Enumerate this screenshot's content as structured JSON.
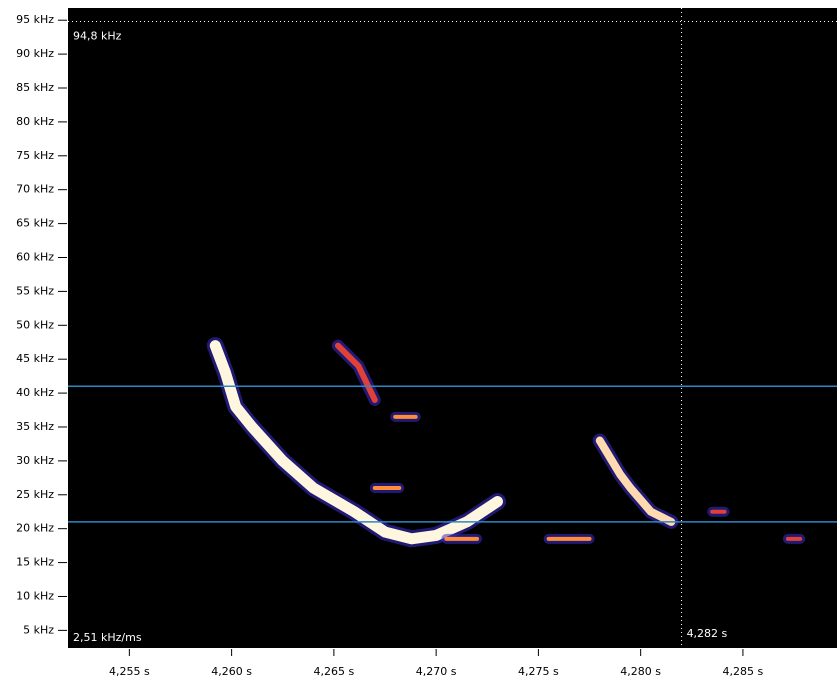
{
  "chart_data": {
    "type": "spectrogram",
    "xlim": [
      4.252,
      4.2896
    ],
    "ylim": [
      2.4,
      96.8
    ],
    "xticks": [
      {
        "value": 4.255,
        "label": "4,255 s"
      },
      {
        "value": 4.26,
        "label": "4,260 s"
      },
      {
        "value": 4.265,
        "label": "4,265 s"
      },
      {
        "value": 4.27,
        "label": "4,270 s"
      },
      {
        "value": 4.275,
        "label": "4,275 s"
      },
      {
        "value": 4.28,
        "label": "4,280 s"
      },
      {
        "value": 4.285,
        "label": "4,285 s"
      }
    ],
    "yticks": [
      {
        "value": 5,
        "label": "5 kHz"
      },
      {
        "value": 10,
        "label": "10 kHz"
      },
      {
        "value": 15,
        "label": "15 kHz"
      },
      {
        "value": 20,
        "label": "20 kHz"
      },
      {
        "value": 25,
        "label": "25 kHz"
      },
      {
        "value": 30,
        "label": "30 kHz"
      },
      {
        "value": 35,
        "label": "35 kHz"
      },
      {
        "value": 40,
        "label": "40 kHz"
      },
      {
        "value": 45,
        "label": "45 kHz"
      },
      {
        "value": 50,
        "label": "50 kHz"
      },
      {
        "value": 55,
        "label": "55 kHz"
      },
      {
        "value": 60,
        "label": "60 kHz"
      },
      {
        "value": 65,
        "label": "65 kHz"
      },
      {
        "value": 70,
        "label": "70 kHz"
      },
      {
        "value": 75,
        "label": "75 kHz"
      },
      {
        "value": 80,
        "label": "80 kHz"
      },
      {
        "value": 85,
        "label": "85 kHz"
      },
      {
        "value": 90,
        "label": "90 kHz"
      },
      {
        "value": 95,
        "label": "95 kHz"
      }
    ],
    "hlines": [
      41,
      21
    ],
    "hline_color": "#2f86c4",
    "cursor": {
      "x": 4.282,
      "y": 94.8,
      "x_label": "4,282 s",
      "y_label": "94,8 kHz"
    },
    "annotation": "2,51 kHz/ms",
    "series": [
      {
        "color": "#fff6e0",
        "width": 11,
        "x": [
          4.2592,
          4.2597,
          4.2602,
          4.261,
          4.2625,
          4.264,
          4.266,
          4.2675,
          4.2688,
          4.27,
          4.2715,
          4.273
        ],
        "values": [
          47,
          43,
          38,
          35,
          30,
          26,
          22.5,
          19.5,
          18.5,
          19,
          21,
          24
        ]
      },
      {
        "color": "#e0403a",
        "width": 6,
        "x": [
          4.2652,
          4.2662,
          4.267
        ],
        "values": [
          47,
          44,
          39
        ]
      },
      {
        "color": "#ffd9b0",
        "width": 8,
        "x": [
          4.278,
          4.279,
          4.2795,
          4.2805,
          4.2815
        ],
        "values": [
          33,
          28,
          26,
          22.5,
          21
        ]
      },
      {
        "color": "#ff8c3a",
        "width": 4,
        "x": [
          4.268,
          4.269
        ],
        "values": [
          36.5,
          36.5
        ]
      },
      {
        "color": "#ff8c3a",
        "width": 4,
        "x": [
          4.267,
          4.2682
        ],
        "values": [
          26,
          26
        ]
      },
      {
        "color": "#ff8c3a",
        "width": 4,
        "x": [
          4.2705,
          4.272
        ],
        "values": [
          18.5,
          18.5
        ]
      },
      {
        "color": "#ff8c3a",
        "width": 4,
        "x": [
          4.2755,
          4.2775
        ],
        "values": [
          18.5,
          18.5
        ]
      },
      {
        "color": "#e0403a",
        "width": 4,
        "x": [
          4.2835,
          4.2841
        ],
        "values": [
          22.5,
          22.5
        ]
      },
      {
        "color": "#e0403a",
        "width": 4,
        "x": [
          4.2872,
          4.2878
        ],
        "values": [
          18.5,
          18.5
        ]
      }
    ]
  }
}
